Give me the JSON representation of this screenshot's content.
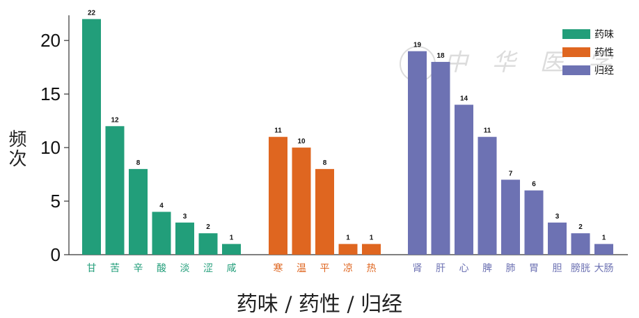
{
  "chart_data": {
    "type": "bar",
    "title": "",
    "xlabel": "药味 / 药性 / 归经",
    "ylabel": "频次",
    "ylim": [
      0,
      23
    ],
    "yticks": [
      0,
      5,
      10,
      15,
      20
    ],
    "grid": false,
    "legend_position": "top-right",
    "groups": [
      {
        "name": "药味",
        "color": "#229e7a",
        "categories": [
          "甘",
          "苦",
          "辛",
          "酸",
          "淡",
          "涩",
          "咸"
        ],
        "values": [
          22,
          12,
          8,
          4,
          3,
          2,
          1
        ]
      },
      {
        "name": "药性",
        "color": "#df6620",
        "categories": [
          "寒",
          "温",
          "平",
          "凉",
          "热"
        ],
        "values": [
          11,
          10,
          8,
          1,
          1
        ]
      },
      {
        "name": "归经",
        "color": "#6d72b3",
        "categories": [
          "肾",
          "肝",
          "心",
          "脾",
          "肺",
          "胃",
          "胆",
          "膀胱",
          "大肠"
        ],
        "values": [
          19,
          18,
          14,
          11,
          7,
          6,
          3,
          2,
          1
        ]
      }
    ]
  }
}
